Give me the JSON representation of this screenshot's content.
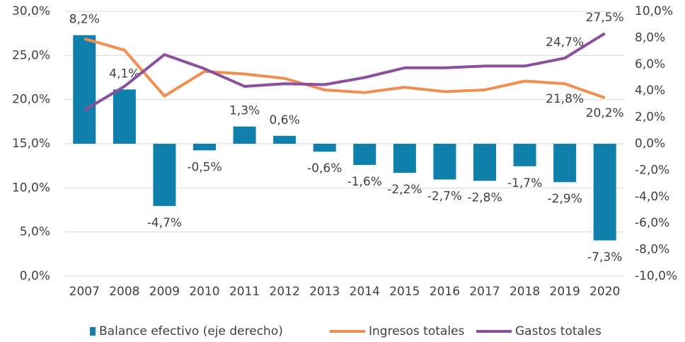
{
  "chart_data": {
    "type": "combo",
    "categories": [
      "2007",
      "2008",
      "2009",
      "2010",
      "2011",
      "2012",
      "2013",
      "2014",
      "2015",
      "2016",
      "2017",
      "2018",
      "2019",
      "2020"
    ],
    "series": [
      {
        "name": "Balance efectivo (eje derecho)",
        "type": "bar",
        "axis": "y2",
        "color": "#0f7fab",
        "values": [
          8.2,
          4.1,
          -4.7,
          -0.5,
          1.3,
          0.6,
          -0.6,
          -1.6,
          -2.2,
          -2.7,
          -2.8,
          -1.7,
          -2.9,
          -7.3
        ],
        "value_labels": [
          "8,2%",
          "4,1%",
          "-4,7%",
          "-0,5%",
          "1,3%",
          "0,6%",
          "-0,6%",
          "-1,6%",
          "-2,2%",
          "-2,7%",
          "-2,8%",
          "-1,7%",
          "-2,9%",
          "-7,3%"
        ]
      },
      {
        "name": "Ingresos totales",
        "type": "line",
        "axis": "y",
        "color": "#f28e4e",
        "values": [
          26.9,
          25.6,
          20.4,
          23.2,
          22.9,
          22.4,
          21.1,
          20.8,
          21.4,
          20.9,
          21.1,
          22.1,
          21.8,
          20.2
        ],
        "value_labels": [
          null,
          null,
          null,
          null,
          null,
          null,
          null,
          null,
          null,
          null,
          null,
          null,
          "21,8%",
          "20,2%"
        ]
      },
      {
        "name": "Gastos totales",
        "type": "line",
        "axis": "y",
        "color": "#8a4f9e",
        "values": [
          18.8,
          21.5,
          25.1,
          23.5,
          21.5,
          21.8,
          21.7,
          22.5,
          23.6,
          23.6,
          23.8,
          23.8,
          24.7,
          27.5
        ],
        "value_labels": [
          null,
          null,
          null,
          null,
          null,
          null,
          null,
          null,
          null,
          null,
          null,
          null,
          "24,7%",
          "27,5%"
        ]
      }
    ],
    "ylim": [
      0,
      30
    ],
    "yticks": [
      {
        "value": 0,
        "label": "0,0%"
      },
      {
        "value": 5,
        "label": "5,0%"
      },
      {
        "value": 10,
        "label": "10,0%"
      },
      {
        "value": 15,
        "label": "15,0%"
      },
      {
        "value": 20,
        "label": "20,0%"
      },
      {
        "value": 25,
        "label": "25,0%"
      },
      {
        "value": 30,
        "label": "30,0%"
      }
    ],
    "y2lim": [
      -10,
      10
    ],
    "y2ticks": [
      {
        "value": -10,
        "label": "-10,0%"
      },
      {
        "value": -8,
        "label": "-8,0%"
      },
      {
        "value": -6,
        "label": "-6,0%"
      },
      {
        "value": -4,
        "label": "-4,0%"
      },
      {
        "value": -2,
        "label": "-2,0%"
      },
      {
        "value": 0,
        "label": "0,0%"
      },
      {
        "value": 2,
        "label": "2,0%"
      },
      {
        "value": 4,
        "label": "4,0%"
      },
      {
        "value": 6,
        "label": "6,0%"
      },
      {
        "value": 8,
        "label": "8,0%"
      },
      {
        "value": 10,
        "label": "10,0%"
      }
    ],
    "grid": true,
    "legend": "bottom"
  }
}
